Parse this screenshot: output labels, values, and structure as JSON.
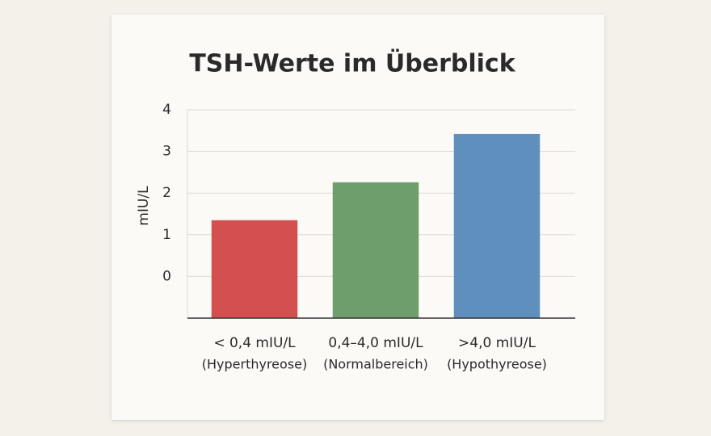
{
  "chart_data": {
    "type": "bar",
    "title": "TSH-Werte im Überblick",
    "y_label": "mIU/L",
    "categories": [
      [
        "< 0,4 mIU/L",
        "(Hyperthyreose)"
      ],
      [
        "0,4–4,0 mIU/L",
        "(Normalbereich)"
      ],
      [
        ">4,0 mIU/L",
        "(Hypothyreose)"
      ]
    ],
    "values": [
      1.35,
      2.26,
      3.42
    ],
    "colors": [
      "#d45050",
      "#6e9e6c",
      "#5f8fbd"
    ],
    "ylim": [
      -1,
      4
    ],
    "yticks": [
      0,
      1,
      2,
      3,
      4
    ],
    "grid": true
  }
}
